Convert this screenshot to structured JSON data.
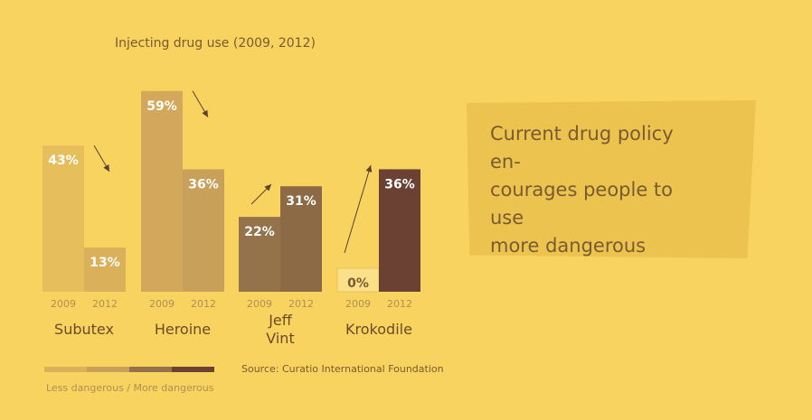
{
  "chart_data": {
    "type": "bar",
    "title": "Injecting drug use (2009, 2012)",
    "categories": [
      "Subutex",
      "Heroine",
      "Jeff Vint",
      "Krokodile"
    ],
    "category_lines": [
      [
        "Subutex"
      ],
      [
        "Heroine"
      ],
      [
        "Jeff",
        "Vint"
      ],
      [
        "Krokodile"
      ]
    ],
    "years": [
      "2009",
      "2012"
    ],
    "values": [
      [
        43,
        13
      ],
      [
        59,
        36
      ],
      [
        22,
        31
      ],
      [
        0,
        36
      ]
    ],
    "value_labels": [
      [
        "43%",
        "13%"
      ],
      [
        "59%",
        "36%"
      ],
      [
        "22%",
        "31%"
      ],
      [
        "0%",
        "36%"
      ]
    ],
    "trend": [
      "down",
      "down",
      "up",
      "up"
    ],
    "colors": [
      [
        "#e6bf5c",
        "#dab05a"
      ],
      [
        "#d4a85a",
        "#c9a05a"
      ],
      [
        "#94724a",
        "#8c6a45"
      ],
      [
        "#fbe08a",
        "#6b4134"
      ]
    ],
    "ylim": [
      0,
      60
    ],
    "xlabel": "",
    "ylabel": ""
  },
  "source": "Source: Curatio International Foundation",
  "legend": {
    "label": "Less dangerous / More dangerous",
    "colors": [
      "#d9b158",
      "#c9a05a",
      "#94724a",
      "#6b4134"
    ]
  },
  "callout": {
    "text": "Current drug policy en-\ncourages people to use\nmore dangerous\ndrugs"
  }
}
